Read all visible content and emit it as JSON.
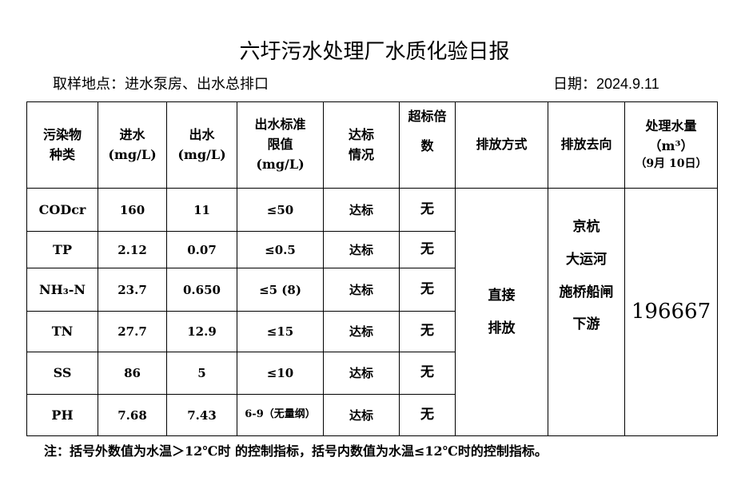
{
  "title": "六圩污水处理厂水质化验日报",
  "sampling": "取样地点：进水泵房、出水总排口",
  "date": "日期：2024.9.11",
  "headers": {
    "pollutant": [
      "污染物",
      "种类"
    ],
    "influent": [
      "进水",
      "(mg/L)"
    ],
    "effluent": [
      "出水",
      "(mg/L)"
    ],
    "limit": [
      "出水标准",
      "限值",
      "(mg/L)"
    ],
    "status": [
      "达标",
      "情况"
    ],
    "exceed": [
      "超标倍",
      "数"
    ],
    "method": "排放方式",
    "destination": "排放去向",
    "volume": [
      "处理水量",
      "（m³）",
      "（9月 10日）"
    ]
  },
  "rows": [
    {
      "name": "CODcr",
      "in": "160",
      "out": "11",
      "limit": "≤50",
      "status": "达标",
      "exceed": "无"
    },
    {
      "name": "TP",
      "in": "2.12",
      "out": "0.07",
      "limit": "≤0.5",
      "status": "达标",
      "exceed": "无"
    },
    {
      "name": "NH₃-N",
      "in": "23.7",
      "out": "0.650",
      "limit": "≤5 (8)",
      "status": "达标",
      "exceed": "无"
    },
    {
      "name": "TN",
      "in": "27.7",
      "out": "12.9",
      "limit": "≤15",
      "status": "达标",
      "exceed": "无"
    },
    {
      "name": "SS",
      "in": "86",
      "out": "5",
      "limit": "≤10",
      "status": "达标",
      "exceed": "无"
    },
    {
      "name": "PH",
      "in": "7.68",
      "out": "7.43",
      "limit": "6-9（无量纲）",
      "status": "达标",
      "exceed": "无"
    }
  ],
  "method": [
    "直接",
    "排放"
  ],
  "destination": [
    "京杭",
    "大运河",
    "施桥船闸",
    "下游"
  ],
  "volume": "196667",
  "note": "注：括号外数值为水温＞12℃时 的控制指标，括号内数值为水温≤12℃时的控制指标。"
}
